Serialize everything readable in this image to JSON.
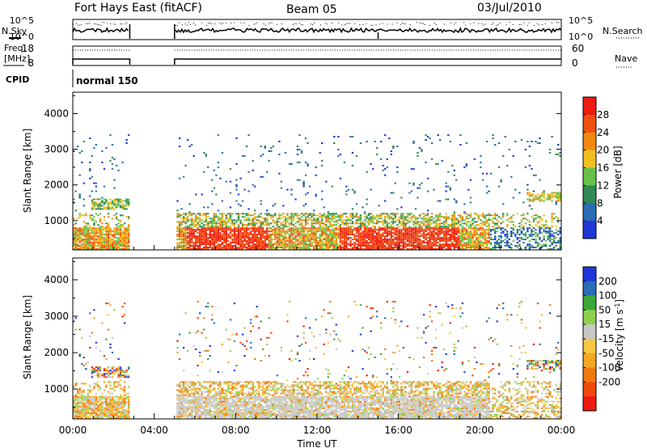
{
  "header": {
    "station": "Fort Hays East (fitACF)",
    "beam": "Beam 05",
    "date": "03/Jul/2010"
  },
  "top_panels": {
    "nsky_label": "N.Sky",
    "nsearch_label": "N.Search",
    "noise_ticks": [
      "10^5",
      "10^0"
    ],
    "freq_label_1": "Freq.",
    "freq_label_2": "[MHz]",
    "freq_ticks": [
      "18",
      "8"
    ],
    "nave_ticks": [
      "60",
      "0"
    ],
    "nave_label": "Nave",
    "cpid_label": "CPID",
    "cpid_value": "normal 150"
  },
  "colors": {
    "power": [
      "#1f37d8",
      "#2a6cb5",
      "#2e8b57",
      "#66c24a",
      "#f0c020",
      "#f08a10",
      "#f05010",
      "#ee1c10"
    ],
    "velocity": [
      "#ee1c10",
      "#f04a10",
      "#f07a10",
      "#f5a623",
      "#f5c842",
      "#c8c8c8",
      "#8fd14f",
      "#3aa83a",
      "#2a6cb5",
      "#1f37d8"
    ]
  },
  "chart_data": [
    {
      "type": "heatmap",
      "name": "power",
      "ylabel": "Slant Range [km]",
      "yticks": [
        "1000",
        "2000",
        "3000",
        "4000"
      ],
      "ylim": [
        180,
        4600
      ],
      "xlim": [
        0,
        24
      ],
      "colorbar_label": "Power [dB]",
      "colorbar_ticks": [
        "4",
        "8",
        "12",
        "16",
        "20",
        "24",
        "28"
      ],
      "data_gap_hours": [
        [
          2.8,
          5.0
        ]
      ]
    },
    {
      "type": "heatmap",
      "name": "velocity",
      "ylabel": "Slant Range [km]",
      "yticks": [
        "1000",
        "2000",
        "3000",
        "4000"
      ],
      "ylim": [
        180,
        4600
      ],
      "xlim": [
        0,
        24
      ],
      "colorbar_label": "Velocity [m s^-1]",
      "colorbar_ticks": [
        "200",
        "100",
        "50",
        "15",
        "-15",
        "-50",
        "-100",
        "-200"
      ],
      "data_gap_hours": [
        [
          2.8,
          5.0
        ]
      ]
    }
  ],
  "x_axis": {
    "label": "Time UT",
    "ticks": [
      "00:00",
      "04:00",
      "08:00",
      "12:00",
      "16:00",
      "20:00",
      "00:00"
    ]
  }
}
